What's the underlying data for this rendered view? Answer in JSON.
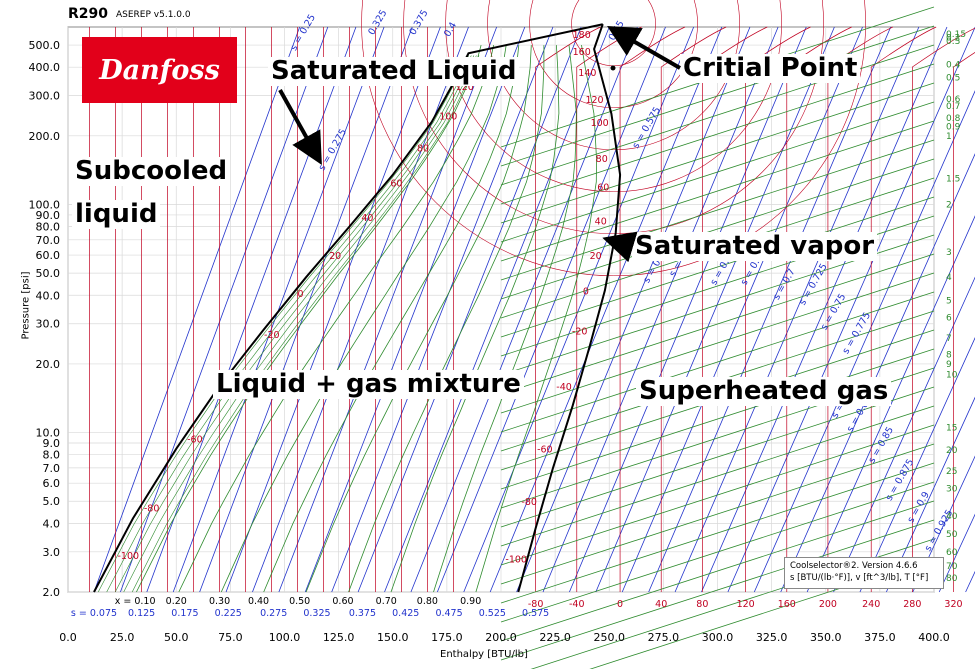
{
  "header": {
    "title": "R290",
    "version": "ASEREP v5.1.0.0"
  },
  "logo": {
    "text": "Danfoss",
    "color": "#e2001a"
  },
  "annotations": {
    "saturated_liquid": "Saturated Liquid",
    "critical_point": "Critial Point",
    "subcooled_1": "Subcooled",
    "subcooled_2": "liquid",
    "saturated_vapor": "Saturated vapor",
    "mixture": "Liquid + gas mixture",
    "superheated": "Superheated gas"
  },
  "info_box": {
    "line1": "Coolselector®2. Version 4.6.6",
    "line2": "s [BTU/(lb·°F)], v [ft^3/lb], T [°F]"
  },
  "chart_data": {
    "type": "line",
    "subtype": "pressure-enthalpy diagram",
    "title": "R290",
    "xlabel": "Enthalpy [BTU/lb]",
    "ylabel": "Pressure [psi]",
    "xlim": [
      0,
      400
    ],
    "ylim": [
      2,
      600
    ],
    "y_scale": "log",
    "x_ticks": [
      "0.0",
      "25.0",
      "50.0",
      "75.0",
      "100.0",
      "125.0",
      "150.0",
      "175.0",
      "200.0",
      "225.0",
      "250.0",
      "275.0",
      "300.0",
      "325.0",
      "350.0",
      "375.0",
      "400.0"
    ],
    "y_ticks": [
      {
        "v": 2,
        "l": "2.0"
      },
      {
        "v": 3,
        "l": "3.0"
      },
      {
        "v": 4,
        "l": "4.0"
      },
      {
        "v": 5,
        "l": "5.0"
      },
      {
        "v": 6,
        "l": "6.0"
      },
      {
        "v": 7,
        "l": "7.0"
      },
      {
        "v": 8,
        "l": "8.0"
      },
      {
        "v": 9,
        "l": "9.0"
      },
      {
        "v": 10,
        "l": "10.0"
      },
      {
        "v": 20,
        "l": "20.0"
      },
      {
        "v": 30,
        "l": "30.0"
      },
      {
        "v": 40,
        "l": "40.0"
      },
      {
        "v": 50,
        "l": "50.0"
      },
      {
        "v": 60,
        "l": "60.0"
      },
      {
        "v": 70,
        "l": "70.0"
      },
      {
        "v": 80,
        "l": "80.0"
      },
      {
        "v": 90,
        "l": "90.0"
      },
      {
        "v": 100,
        "l": "100.0"
      },
      {
        "v": 200,
        "l": "200.0"
      },
      {
        "v": 300,
        "l": "300.0"
      },
      {
        "v": 400,
        "l": "400.0"
      },
      {
        "v": 500,
        "l": "500.0"
      }
    ],
    "saturated_liquid": {
      "h": [
        12,
        30,
        50,
        70,
        90,
        110,
        130,
        150,
        168,
        178,
        185
      ],
      "p": [
        2,
        4.2,
        8.5,
        16,
        28,
        48,
        80,
        135,
        230,
        340,
        460
      ]
    },
    "saturated_vapor": {
      "h": [
        208,
        216,
        224,
        233,
        241,
        248,
        253,
        255,
        251,
        243
      ],
      "p": [
        2,
        3.8,
        7,
        13,
        24,
        42,
        75,
        135,
        250,
        480
      ]
    },
    "critical_point": {
      "h": 247,
      "p": 617
    },
    "quality_labels": {
      "values": [
        "x = 0.10",
        "0.20",
        "0.30",
        "0.40",
        "0.50",
        "0.60",
        "0.70",
        "0.80",
        "0.90"
      ],
      "h": [
        31,
        50,
        70,
        88,
        107,
        127,
        147,
        166,
        186
      ]
    },
    "entropy_bottom_labels": {
      "values": [
        "s = 0.075",
        "0.125",
        "0.175",
        "0.225",
        "0.275",
        "0.325",
        "0.375",
        "0.425",
        "0.475",
        "0.525",
        "0.575"
      ],
      "h": [
        12,
        34,
        54,
        74,
        95,
        115,
        136,
        156,
        176,
        196,
        216
      ]
    },
    "temperature_bottom_labels": {
      "values": [
        "-80",
        "-40",
        "0",
        "40",
        "80",
        "120",
        "160",
        "200",
        "240",
        "280",
        "320"
      ],
      "h": [
        216,
        235,
        255,
        274,
        293,
        313,
        332,
        351,
        371,
        390,
        409
      ]
    },
    "volume_right_labels": {
      "values": [
        "0.15",
        "0.2",
        "0.3",
        "0.4",
        "0.5",
        "0.6",
        "0.7",
        "0.8",
        "0.9",
        "1",
        "1.5",
        "2",
        "3",
        "4",
        "5",
        "6",
        "7",
        "8",
        "9",
        "10",
        "15",
        "20",
        "25",
        "30",
        "40",
        "50",
        "60",
        "70",
        "80"
      ],
      "p": [
        560,
        540,
        520,
        410,
        360,
        290,
        270,
        240,
        220,
        200,
        130,
        100,
        62,
        48,
        38,
        32,
        26,
        22,
        20,
        18,
        10.5,
        8.4,
        6.8,
        5.7,
        4.3,
        3.6,
        3.0,
        2.6,
        2.3
      ]
    },
    "sat_temp_labels": {
      "values": [
        "-100",
        "-80",
        "-60",
        "-40",
        "-20",
        "0",
        "20",
        "40",
        "60",
        "80",
        "100",
        "120",
        "140"
      ],
      "p": [
        2.9,
        4.7,
        9.4,
        16.5,
        27,
        41,
        60,
        88,
        125,
        178,
        245,
        330,
        420
      ]
    },
    "vapor_temp_labels": {
      "values": [
        "-100",
        "-80",
        "-60",
        "-40",
        "-20",
        "0",
        "20",
        "40",
        "60",
        "80",
        "100",
        "120",
        "140",
        "160",
        "180"
      ],
      "p": [
        2.8,
        5,
        8.5,
        16,
        28,
        42,
        60,
        85,
        120,
        160,
        230,
        290,
        380,
        470,
        560
      ]
    },
    "entropy_labels": {
      "values": [
        "s = 0.25",
        "s = 0.275",
        "0.325",
        "0.375",
        "0.4",
        "0.55",
        "s = 0.575",
        "s = 0.6",
        "s = 0.625",
        "s = 0.65",
        "s = 0.675",
        "s = 0.7",
        "s = 0.725",
        "s = 0.75",
        "s = 0.775",
        "s = 0.8",
        "s = 0.825",
        "s = 0.85",
        "s = 0.875",
        "s = 0.9",
        "s = 0.925"
      ],
      "h": [
        105,
        118,
        141,
        160,
        176,
        252,
        263,
        268,
        280,
        299,
        313,
        328,
        340,
        350,
        360,
        355,
        362,
        372,
        380,
        390,
        398
      ],
      "p": [
        470,
        140,
        550,
        550,
        540,
        520,
        175,
        45,
        48,
        44,
        44,
        38,
        36,
        28,
        22,
        11.5,
        10,
        7.3,
        5,
        4,
        3
      ]
    },
    "grid": true
  }
}
